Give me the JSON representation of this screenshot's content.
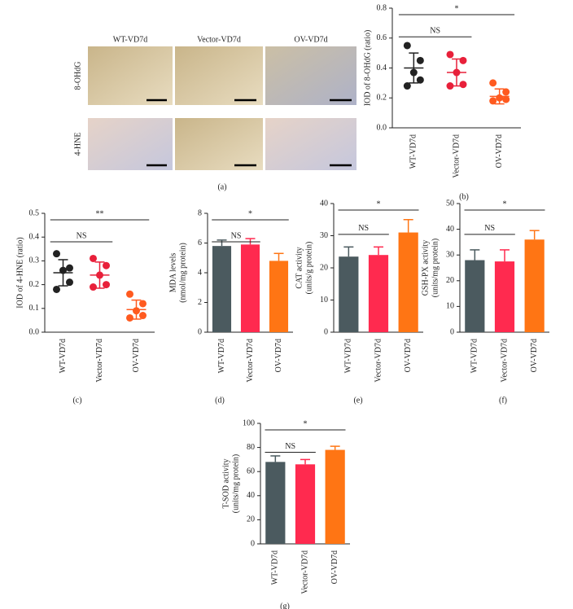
{
  "figure_a": {
    "columns": [
      "WT-VD7d",
      "Vector-VD7d",
      "OV-VD7d"
    ],
    "rows": [
      "8-OHdG",
      "4-HNE"
    ],
    "panel_label": "(a)"
  },
  "chart_data": [
    {
      "type": "dot",
      "panel_label": "(b)",
      "ylabel": [
        "IOD of 8-OHdG (ratio)"
      ],
      "categories": [
        "WT-VD7d",
        "Vector-VD7d",
        "OV-VD7d"
      ],
      "colors": [
        "#222222",
        "#e8203a",
        "#ff5a1f"
      ],
      "points": [
        [
          0.55,
          0.45,
          0.37,
          0.32,
          0.28
        ],
        [
          0.49,
          0.45,
          0.37,
          0.29,
          0.28
        ],
        [
          0.3,
          0.24,
          0.2,
          0.19,
          0.18
        ]
      ],
      "means": [
        0.4,
        0.37,
        0.21
      ],
      "sds": [
        0.1,
        0.09,
        0.05
      ],
      "ylim": [
        0,
        0.8
      ],
      "yticks": [
        {
          "value": 0,
          "label": "0.0"
        },
        0.2,
        0.4,
        0.6,
        0.8
      ],
      "annotations": [
        "NS",
        "*"
      ]
    },
    {
      "type": "dot",
      "panel_label": "(c)",
      "ylabel": [
        "IOD of 4-HNE (ratio)"
      ],
      "categories": [
        "WT-VD7d",
        "Vector-VD7d",
        "OV-VD7d"
      ],
      "colors": [
        "#222222",
        "#e8203a",
        "#ff5a1f"
      ],
      "points": [
        [
          0.33,
          0.27,
          0.26,
          0.21,
          0.18
        ],
        [
          0.31,
          0.28,
          0.24,
          0.2,
          0.19
        ],
        [
          0.16,
          0.12,
          0.09,
          0.07,
          0.06
        ]
      ],
      "means": [
        0.25,
        0.24,
        0.095
      ],
      "sds": [
        0.055,
        0.055,
        0.04
      ],
      "ylim": [
        0,
        0.5
      ],
      "yticks": [
        {
          "value": 0,
          "label": "0.0"
        },
        0.1,
        0.2,
        0.3,
        0.4,
        0.5
      ],
      "annotations": [
        "NS",
        "**"
      ]
    },
    {
      "type": "bar",
      "panel_label": "(d)",
      "ylabel": [
        "MDA levels",
        "(nmol/mg protein)"
      ],
      "categories": [
        "WT-VD7d",
        "Vector-VD7d",
        "OV-VD7d"
      ],
      "colors": [
        "#4b5a5f",
        "#ff2a4f",
        "#ff7514"
      ],
      "values": [
        5.8,
        5.9,
        4.8
      ],
      "errors": [
        0.4,
        0.4,
        0.5
      ],
      "ylim": [
        0,
        8
      ],
      "yticks": [
        0,
        2,
        4,
        6,
        8
      ],
      "annotations": [
        "NS",
        "*"
      ]
    },
    {
      "type": "bar",
      "panel_label": "(e)",
      "ylabel": [
        "CAT activity",
        "(units/g protein)"
      ],
      "categories": [
        "WT-VD7d",
        "Vector-VD7d",
        "OV-VD7d"
      ],
      "colors": [
        "#4b5a5f",
        "#ff2a4f",
        "#ff7514"
      ],
      "values": [
        23.5,
        24,
        31
      ],
      "errors": [
        3,
        2.5,
        4
      ],
      "ylim": [
        0,
        40
      ],
      "yticks": [
        0,
        10,
        20,
        30,
        40
      ],
      "annotations": [
        "NS",
        "*"
      ]
    },
    {
      "type": "bar",
      "panel_label": "(f)",
      "ylabel": [
        "GSH-PX activity",
        "(units/mg protein)"
      ],
      "categories": [
        "WT-VD7d",
        "Vector-VD7d",
        "OV-VD7d"
      ],
      "colors": [
        "#4b5a5f",
        "#ff2a4f",
        "#ff7514"
      ],
      "values": [
        28,
        27.5,
        36
      ],
      "errors": [
        4,
        4.5,
        3.5
      ],
      "ylim": [
        0,
        50
      ],
      "yticks": [
        0,
        10,
        20,
        30,
        40,
        50
      ],
      "annotations": [
        "NS",
        "*"
      ]
    },
    {
      "type": "bar",
      "panel_label": "(g)",
      "ylabel": [
        "T-SOD activity",
        "(units/mg protein)"
      ],
      "categories": [
        "WT-VD7d",
        "Vector-VD7d",
        "OV-VD7d"
      ],
      "colors": [
        "#4b5a5f",
        "#ff2a4f",
        "#ff7514"
      ],
      "values": [
        68,
        66,
        78
      ],
      "errors": [
        5,
        4,
        3
      ],
      "ylim": [
        0,
        100
      ],
      "yticks": [
        0,
        20,
        40,
        60,
        80,
        100
      ],
      "annotations": [
        "NS",
        "*"
      ]
    }
  ]
}
